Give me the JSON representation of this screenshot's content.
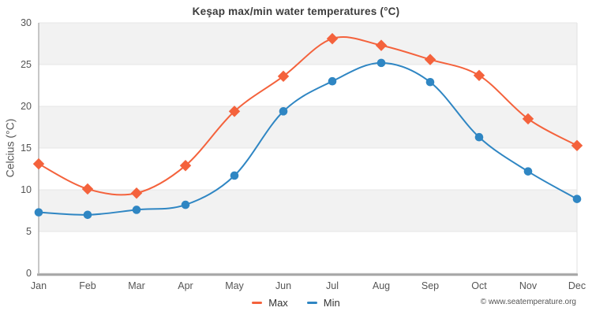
{
  "page": {
    "title": "Keşap max/min water temperatures (°C)"
  },
  "y_axis": {
    "label": "Celcius (°C)"
  },
  "legend": {
    "items": [
      {
        "label": "Max"
      },
      {
        "label": "Min"
      }
    ]
  },
  "footer": {
    "copyright": "© www.seatemperature.org"
  },
  "chart_data": {
    "type": "line",
    "title": "Keşap max/min water temperatures (°C)",
    "xlabel": "",
    "ylabel": "Celcius (°C)",
    "categories": [
      "Jan",
      "Feb",
      "Mar",
      "Apr",
      "May",
      "Jun",
      "Jul",
      "Aug",
      "Sep",
      "Oct",
      "Nov",
      "Dec"
    ],
    "series": [
      {
        "name": "Max",
        "color": "#f4623c",
        "marker": "diamond",
        "values": [
          13.1,
          10.1,
          9.6,
          12.9,
          19.4,
          23.6,
          28.1,
          27.3,
          25.6,
          23.7,
          18.5,
          15.3
        ]
      },
      {
        "name": "Min",
        "color": "#2f86c3",
        "marker": "circle",
        "values": [
          7.3,
          7.0,
          7.6,
          8.2,
          11.7,
          19.4,
          23.0,
          25.2,
          22.9,
          16.3,
          12.2,
          8.9
        ]
      }
    ],
    "ylim": [
      0,
      30
    ],
    "yticks": [
      0,
      5,
      10,
      15,
      20,
      25,
      30
    ],
    "grid": true,
    "band_fill": "#f2f2f2",
    "gridline_color": "#e7e7e7",
    "axis_line_color": "#b9b9b9",
    "baseline_color": "#a6a6a6",
    "legend_position": "bottom"
  }
}
